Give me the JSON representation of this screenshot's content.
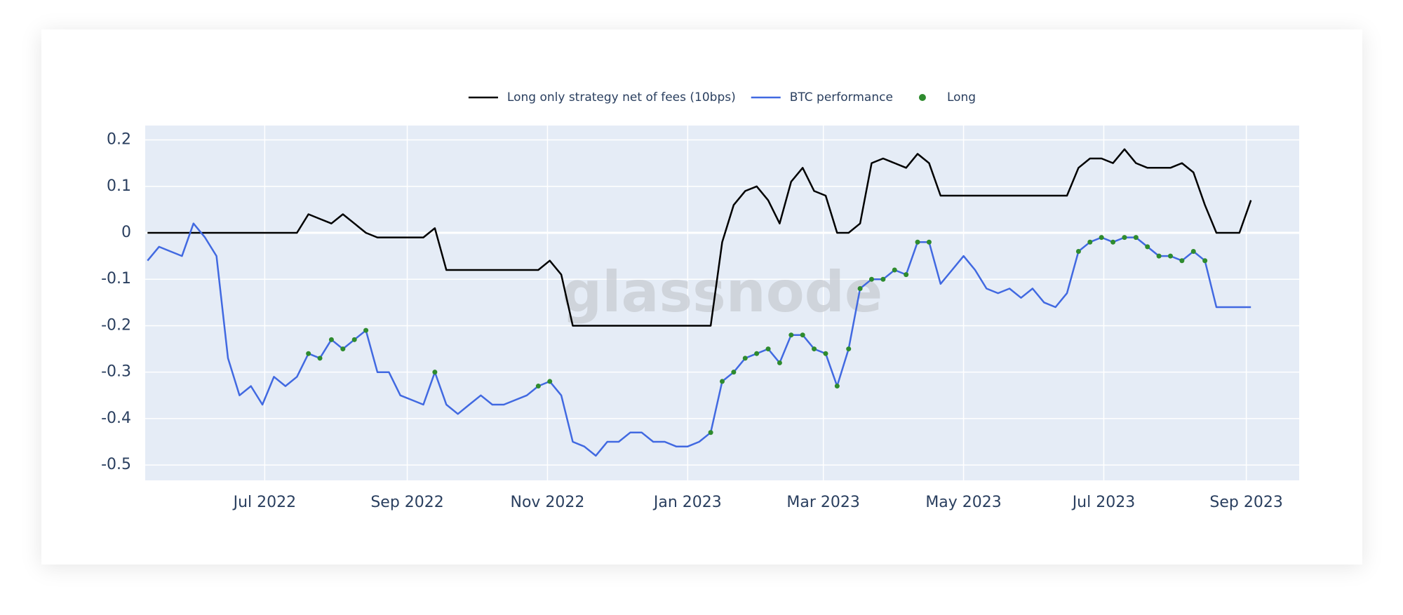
{
  "chart_data": {
    "type": "line",
    "watermark": "glassnode",
    "x": [
      10,
      15,
      20,
      25,
      30,
      35,
      40,
      45,
      50,
      55,
      60,
      65,
      70,
      75,
      80,
      85,
      90,
      95,
      100,
      105,
      110,
      115,
      120,
      125,
      130,
      135,
      140,
      145,
      150,
      155,
      160,
      165,
      170,
      175,
      180,
      185,
      190,
      195,
      200,
      205,
      210,
      215,
      220,
      225,
      230,
      235,
      240,
      245,
      250,
      255,
      260,
      265,
      270,
      275,
      280,
      285,
      290,
      295,
      300,
      305,
      310,
      315,
      320,
      325,
      330,
      335,
      340,
      345,
      350,
      355,
      360,
      365,
      370,
      375,
      380,
      385,
      390,
      395,
      400,
      405,
      410,
      415,
      420,
      425,
      430,
      435,
      440,
      445,
      450,
      455,
      460,
      465,
      470,
      475,
      480,
      485,
      490
    ],
    "xlim": [
      9,
      511
    ],
    "xticks": [
      {
        "value": 61,
        "label": "Jul 2022"
      },
      {
        "value": 123,
        "label": "Sep 2022"
      },
      {
        "value": 184,
        "label": "Nov 2022"
      },
      {
        "value": 245,
        "label": "Jan 2023"
      },
      {
        "value": 304,
        "label": "Mar 2023"
      },
      {
        "value": 365,
        "label": "May 2023"
      },
      {
        "value": 426,
        "label": "Jul 2023"
      },
      {
        "value": 488,
        "label": "Sep 2023"
      }
    ],
    "ylim": [
      -0.533,
      0.231
    ],
    "yticks": [
      0.2,
      0.1,
      0,
      -0.1,
      -0.2,
      -0.3,
      -0.4,
      -0.5
    ],
    "grid": true,
    "legend": "top",
    "series": [
      {
        "name": "Long only strategy net of fees (10bps)",
        "color": "#000000",
        "mode": "lines",
        "values": [
          0,
          0,
          0,
          0,
          0,
          0,
          0,
          0,
          0,
          0,
          0,
          0,
          0,
          0,
          0.04,
          0.03,
          0.02,
          0.04,
          0.02,
          0.0,
          -0.01,
          -0.01,
          -0.01,
          -0.01,
          -0.01,
          0.01,
          -0.08,
          -0.08,
          -0.08,
          -0.08,
          -0.08,
          -0.08,
          -0.08,
          -0.08,
          -0.08,
          -0.06,
          -0.09,
          -0.2,
          -0.2,
          -0.2,
          -0.2,
          -0.2,
          -0.2,
          -0.2,
          -0.2,
          -0.2,
          -0.2,
          -0.2,
          -0.2,
          -0.2,
          -0.02,
          0.06,
          0.09,
          0.1,
          0.07,
          0.02,
          0.11,
          0.14,
          0.09,
          0.08,
          0.0,
          0.0,
          0.02,
          0.15,
          0.16,
          0.15,
          0.14,
          0.17,
          0.15,
          0.08,
          0.08,
          0.08,
          0.08,
          0.08,
          0.08,
          0.08,
          0.08,
          0.08,
          0.08,
          0.08,
          0.08,
          0.14,
          0.16,
          0.16,
          0.15,
          0.18,
          0.15,
          0.14,
          0.14,
          0.14,
          0.15,
          0.13,
          0.06,
          0.0,
          0.0,
          0.0,
          0.07
        ]
      },
      {
        "name": "BTC performance",
        "color": "#4169e1",
        "mode": "lines",
        "values": [
          -0.06,
          -0.03,
          -0.04,
          -0.05,
          0.02,
          -0.01,
          -0.05,
          -0.27,
          -0.35,
          -0.33,
          -0.37,
          -0.31,
          -0.33,
          -0.31,
          -0.26,
          -0.27,
          -0.23,
          -0.25,
          -0.23,
          -0.21,
          -0.3,
          -0.3,
          -0.35,
          -0.36,
          -0.37,
          -0.3,
          -0.37,
          -0.39,
          -0.37,
          -0.35,
          -0.37,
          -0.37,
          -0.36,
          -0.35,
          -0.33,
          -0.32,
          -0.35,
          -0.45,
          -0.46,
          -0.48,
          -0.45,
          -0.45,
          -0.43,
          -0.43,
          -0.45,
          -0.45,
          -0.46,
          -0.46,
          -0.45,
          -0.43,
          -0.32,
          -0.3,
          -0.27,
          -0.26,
          -0.25,
          -0.28,
          -0.22,
          -0.22,
          -0.25,
          -0.26,
          -0.33,
          -0.25,
          -0.12,
          -0.1,
          -0.1,
          -0.08,
          -0.09,
          -0.02,
          -0.02,
          -0.11,
          -0.08,
          -0.05,
          -0.08,
          -0.12,
          -0.13,
          -0.12,
          -0.14,
          -0.12,
          -0.15,
          -0.16,
          -0.13,
          -0.04,
          -0.02,
          -0.01,
          -0.02,
          -0.01,
          -0.01,
          -0.03,
          -0.05,
          -0.05,
          -0.06,
          -0.04,
          -0.06,
          -0.16,
          -0.16,
          -0.16,
          -0.16
        ]
      },
      {
        "name": "Long",
        "color": "#2e8b2e",
        "mode": "markers",
        "values": [
          null,
          null,
          null,
          null,
          null,
          null,
          null,
          null,
          null,
          null,
          null,
          null,
          null,
          null,
          -0.26,
          -0.27,
          -0.23,
          -0.25,
          -0.23,
          -0.21,
          null,
          null,
          null,
          null,
          null,
          -0.3,
          null,
          null,
          null,
          null,
          null,
          null,
          null,
          null,
          -0.33,
          -0.32,
          null,
          null,
          null,
          null,
          null,
          null,
          null,
          null,
          null,
          null,
          null,
          null,
          null,
          -0.43,
          -0.32,
          -0.3,
          -0.27,
          -0.26,
          -0.25,
          -0.28,
          -0.22,
          -0.22,
          -0.25,
          -0.26,
          -0.33,
          -0.25,
          -0.12,
          -0.1,
          -0.1,
          -0.08,
          -0.09,
          -0.02,
          -0.02,
          null,
          null,
          null,
          null,
          null,
          null,
          null,
          null,
          null,
          null,
          null,
          null,
          -0.04,
          -0.02,
          -0.01,
          -0.02,
          -0.01,
          -0.01,
          -0.03,
          -0.05,
          -0.05,
          -0.06,
          -0.04,
          -0.06,
          null,
          null,
          null,
          null
        ]
      }
    ]
  }
}
